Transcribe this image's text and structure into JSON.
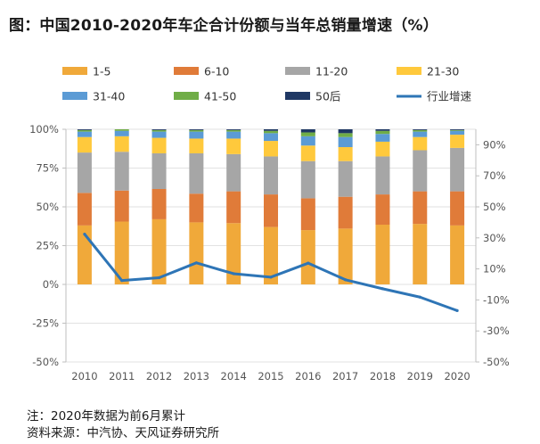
{
  "title": "图：中国2010-2020年车企合计份额与当年总销量增速（%）",
  "notes": [
    "注：2020年数据为前6月累计",
    "资料来源：中汽协、天风证券研究所"
  ],
  "chart_data": {
    "type": "bar",
    "stacked": true,
    "categories": [
      "2010",
      "2011",
      "2012",
      "2013",
      "2014",
      "2015",
      "2016",
      "2017",
      "2018",
      "2019",
      "2020"
    ],
    "series": [
      {
        "name": "1-5",
        "color": "#F0A93A",
        "values": [
          38,
          40.5,
          42,
          40,
          39.5,
          37,
          35,
          36,
          38.5,
          39,
          38
        ]
      },
      {
        "name": "6-10",
        "color": "#E07B39",
        "values": [
          21,
          20,
          19.5,
          18.5,
          20.5,
          21,
          20.5,
          20.5,
          19.5,
          21,
          22
        ]
      },
      {
        "name": "11-20",
        "color": "#A6A6A6",
        "values": [
          26,
          25,
          23,
          26,
          24,
          24.5,
          24,
          23,
          24.5,
          26.5,
          28
        ]
      },
      {
        "name": "21-30",
        "color": "#FFC93C",
        "values": [
          10,
          10,
          10,
          9.5,
          10,
          10,
          10,
          9,
          9.5,
          8.5,
          8.5
        ]
      },
      {
        "name": "31-40",
        "color": "#5B9BD5",
        "values": [
          3.5,
          3.5,
          4,
          4.5,
          4.5,
          5,
          6,
          6.5,
          5,
          3.5,
          2.5
        ]
      },
      {
        "name": "41-50",
        "color": "#70AD47",
        "values": [
          1,
          1,
          1,
          1,
          1,
          1.5,
          2.5,
          2.5,
          2,
          1,
          0.5
        ]
      },
      {
        "name": "50后",
        "color": "#1F3864",
        "values": [
          0.5,
          0,
          0.5,
          0.5,
          0.5,
          1,
          2,
          2.5,
          1,
          0.5,
          0.5
        ]
      }
    ],
    "line": {
      "name": "行业增速",
      "color": "#2E75B6",
      "values": [
        32.4,
        2.5,
        4.3,
        13.9,
        6.9,
        4.7,
        13.7,
        3.0,
        -2.8,
        -8.2,
        -16.9
      ]
    },
    "y_left": {
      "range": [
        -50,
        100
      ],
      "ticks": [
        "-50%",
        "-25%",
        "0%",
        "25%",
        "50%",
        "75%",
        "100%"
      ]
    },
    "y_right": {
      "range": [
        -50,
        100
      ],
      "ticks": [
        "-50%",
        "-30%",
        "-10%",
        "10%",
        "30%",
        "50%",
        "70%",
        "90%"
      ]
    },
    "legend_position": "top"
  }
}
